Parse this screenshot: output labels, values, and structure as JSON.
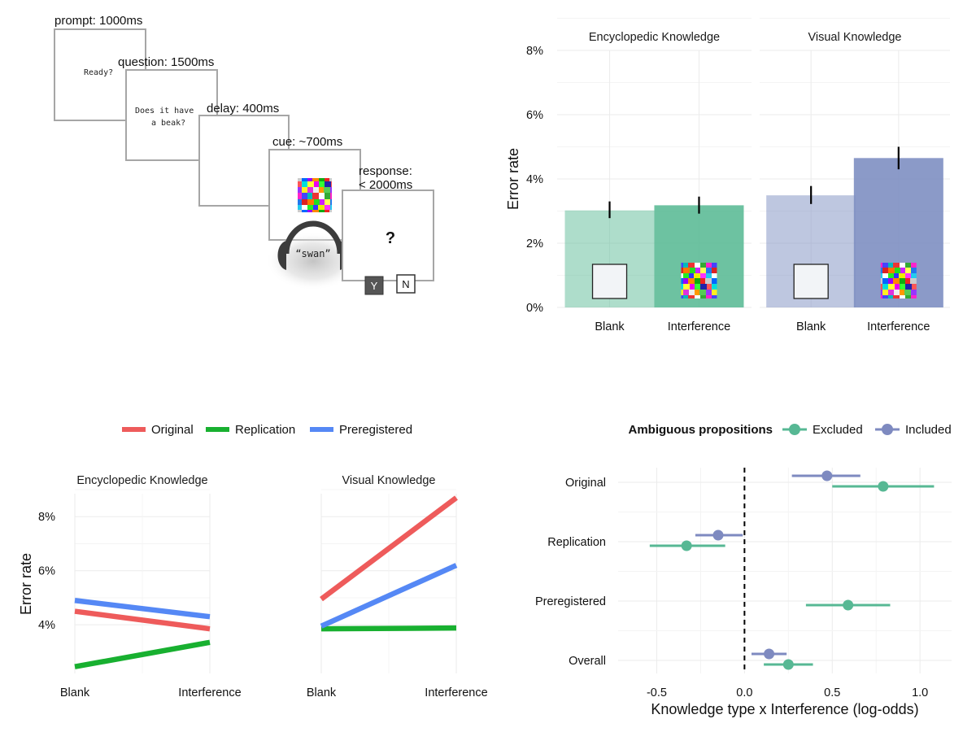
{
  "colors": {
    "encyclopedic": "#5DBB97",
    "visual": "#7E8FC2",
    "original": "#EE5B5B",
    "replication": "#18B030",
    "preregistered": "#5588F5",
    "excluded": "#57B894",
    "included": "#7E8AC0",
    "grid": "#EBEBEB",
    "frame": "#A6A6A6"
  },
  "schematic": {
    "prompt_label": "prompt: 1000ms",
    "prompt_text": "Ready?",
    "question_label": "question: 1500ms",
    "question_line1": "Does it have",
    "question_line2": "a beak?",
    "delay_label": "delay: 400ms",
    "cue_label": "cue: ~700ms",
    "response_label_line1": "response:",
    "response_label_line2": "< 2000ms",
    "response_symbol": "?",
    "audio_word": "“swan”",
    "yes_key": "Y",
    "no_key": "N"
  },
  "chart_data": [
    {
      "type": "bar",
      "ylabel": "Error rate",
      "ylim": [
        0,
        8.5
      ],
      "yticks": [
        "0%",
        "2%",
        "4%",
        "6%",
        "8%"
      ],
      "ytick_values": [
        0,
        2,
        4,
        6,
        8
      ],
      "facets": [
        {
          "name": "Encyclopedic Knowledge",
          "categories": [
            "Blank",
            "Interference"
          ],
          "values": [
            3.02,
            3.18
          ],
          "error_low": [
            2.78,
            2.92
          ],
          "error_high": [
            3.3,
            3.45
          ]
        },
        {
          "name": "Visual Knowledge",
          "categories": [
            "Blank",
            "Interference"
          ],
          "values": [
            3.49,
            4.65
          ],
          "error_low": [
            3.22,
            4.3
          ],
          "error_high": [
            3.78,
            5.0
          ]
        }
      ]
    },
    {
      "type": "line",
      "ylabel": "Error rate",
      "ylim": [
        2.2,
        8.85
      ],
      "yticks": [
        "4%",
        "6%",
        "8%"
      ],
      "ytick_values": [
        4,
        6,
        8
      ],
      "categories": [
        "Blank",
        "Interference"
      ],
      "legend": {
        "position": "top",
        "entries": [
          "Original",
          "Replication",
          "Preregistered"
        ]
      },
      "facets": [
        {
          "name": "Encyclopedic Knowledge",
          "series": [
            {
              "name": "Original",
              "values": [
                4.5,
                3.85
              ]
            },
            {
              "name": "Replication",
              "values": [
                2.45,
                3.35
              ]
            },
            {
              "name": "Preregistered",
              "values": [
                4.9,
                4.3
              ]
            }
          ]
        },
        {
          "name": "Visual Knowledge",
          "series": [
            {
              "name": "Original",
              "values": [
                4.95,
                8.7
              ]
            },
            {
              "name": "Replication",
              "values": [
                3.85,
                3.88
              ]
            },
            {
              "name": "Preregistered",
              "values": [
                3.95,
                6.2
              ]
            }
          ]
        }
      ]
    },
    {
      "type": "scatter",
      "subtype": "forest",
      "xlabel": "Knowledge type x Interference (log-odds)",
      "xlim": [
        -0.72,
        1.18
      ],
      "xticks": [
        "-0.5",
        "0.0",
        "0.5",
        "1.0"
      ],
      "xtick_values": [
        -0.5,
        0,
        0.5,
        1.0
      ],
      "reference_line": 0,
      "categories": [
        "Original",
        "Replication",
        "Preregistered",
        "Overall"
      ],
      "legend": {
        "title": "Ambiguous propositions",
        "position": "top",
        "entries": [
          "Excluded",
          "Included"
        ]
      },
      "series": [
        {
          "name": "Excluded",
          "points": [
            {
              "category": "Original",
              "estimate": 0.79,
              "low": 0.5,
              "high": 1.08
            },
            {
              "category": "Replication",
              "estimate": -0.33,
              "low": -0.54,
              "high": -0.11
            },
            {
              "category": "Preregistered",
              "estimate": 0.59,
              "low": 0.35,
              "high": 0.83
            },
            {
              "category": "Overall",
              "estimate": 0.25,
              "low": 0.11,
              "high": 0.39
            }
          ]
        },
        {
          "name": "Included",
          "points": [
            {
              "category": "Original",
              "estimate": 0.47,
              "low": 0.27,
              "high": 0.66
            },
            {
              "category": "Replication",
              "estimate": -0.15,
              "low": -0.28,
              "high": -0.01
            },
            {
              "category": "Overall",
              "estimate": 0.14,
              "low": 0.04,
              "high": 0.24
            }
          ]
        }
      ]
    }
  ]
}
